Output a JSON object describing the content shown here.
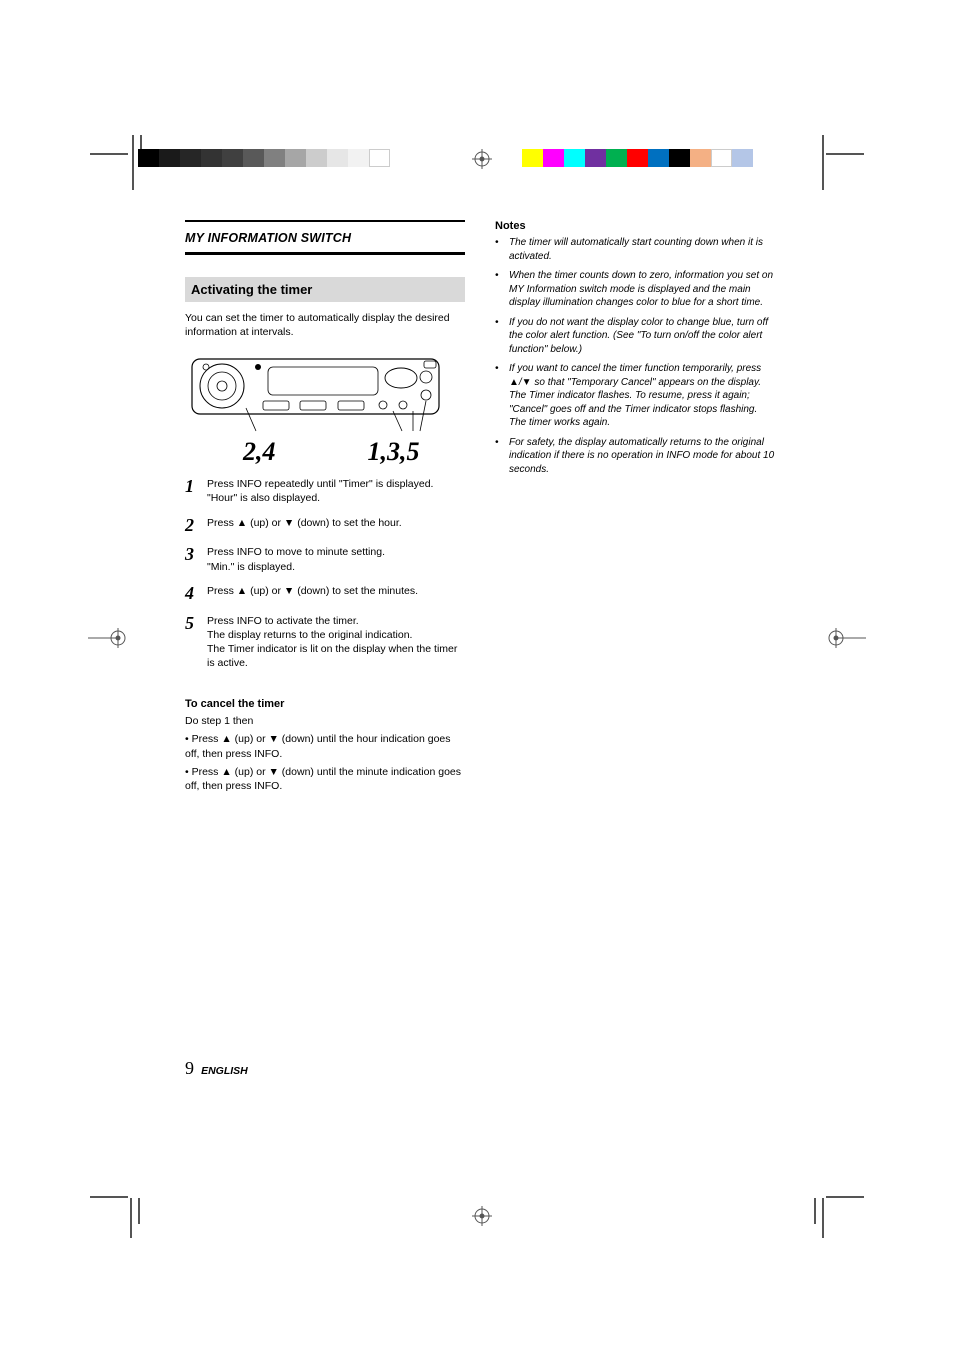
{
  "crop": {
    "gray_swatches": [
      "#000000",
      "#1a1a1a",
      "#262626",
      "#333333",
      "#404040",
      "#595959",
      "#808080",
      "#a6a6a6",
      "#cccccc",
      "#e6e6e6",
      "#f2f2f2",
      "#ffffff"
    ],
    "color_swatches": [
      "#ffff00",
      "#ff00ff",
      "#00ffff",
      "#7030a0",
      "#00b050",
      "#ff0000",
      "#0070c0",
      "#000000",
      "#f4b084",
      "#ffffff",
      "#b4c6e7"
    ],
    "reg_mark_color": "#555555"
  },
  "section": {
    "title": "MY INFORMATION SWITCH",
    "sub_title": "Activating the timer",
    "intro": "You can set the timer to automatically display the desired information at intervals."
  },
  "figure": {
    "left_callout": "2,4",
    "right_callout": "1,3,5"
  },
  "steps": [
    {
      "n": "1",
      "main": "Press INFO repeatedly until \"Timer\" is displayed.",
      "sub": "\"Hour\" is also displayed."
    },
    {
      "n": "2",
      "main": "Press ▲ (up) or ▼ (down) to set the hour."
    },
    {
      "n": "3",
      "main": "Press INFO to move to minute setting.",
      "sub": "\"Min.\" is displayed."
    },
    {
      "n": "4",
      "main": "Press ▲ (up) or ▼ (down) to set the minutes."
    },
    {
      "n": "5",
      "main": "Press INFO to activate the timer.",
      "sub1": "The display returns to the original indication.",
      "sub2": "The Timer indicator is lit on the display when the timer is active."
    }
  ],
  "cancel": {
    "heading": "To cancel the timer",
    "lead": "Do step 1 then",
    "row1": "• Press ▲ (up) or ▼ (down) until the hour indication goes off, then press INFO.",
    "row2": "• Press ▲ (up) or ▼ (down) until the minute indication goes off, then press INFO."
  },
  "notes": {
    "heading": "Notes",
    "items": [
      "The timer will automatically start counting down when it is activated.",
      "When the timer counts down to zero, information you set on MY Information switch mode is displayed and the main display illumination changes color to blue for a short time.",
      "If you do not want the display color to change blue, turn off the color alert function. (See \"To turn on/off the color alert function\" below.)",
      "If you want to cancel the timer function temporarily, press ▲/▼ so that \"Temporary Cancel\" appears on the display. The Timer indicator flashes. To resume, press it again; \"Cancel\" goes off and the Timer indicator stops flashing. The timer works again.",
      "For safety, the display automatically returns to the original indication if there is no operation in INFO mode for about 10 seconds."
    ]
  },
  "footer": {
    "page": "9",
    "lang": "ENGLISH"
  }
}
